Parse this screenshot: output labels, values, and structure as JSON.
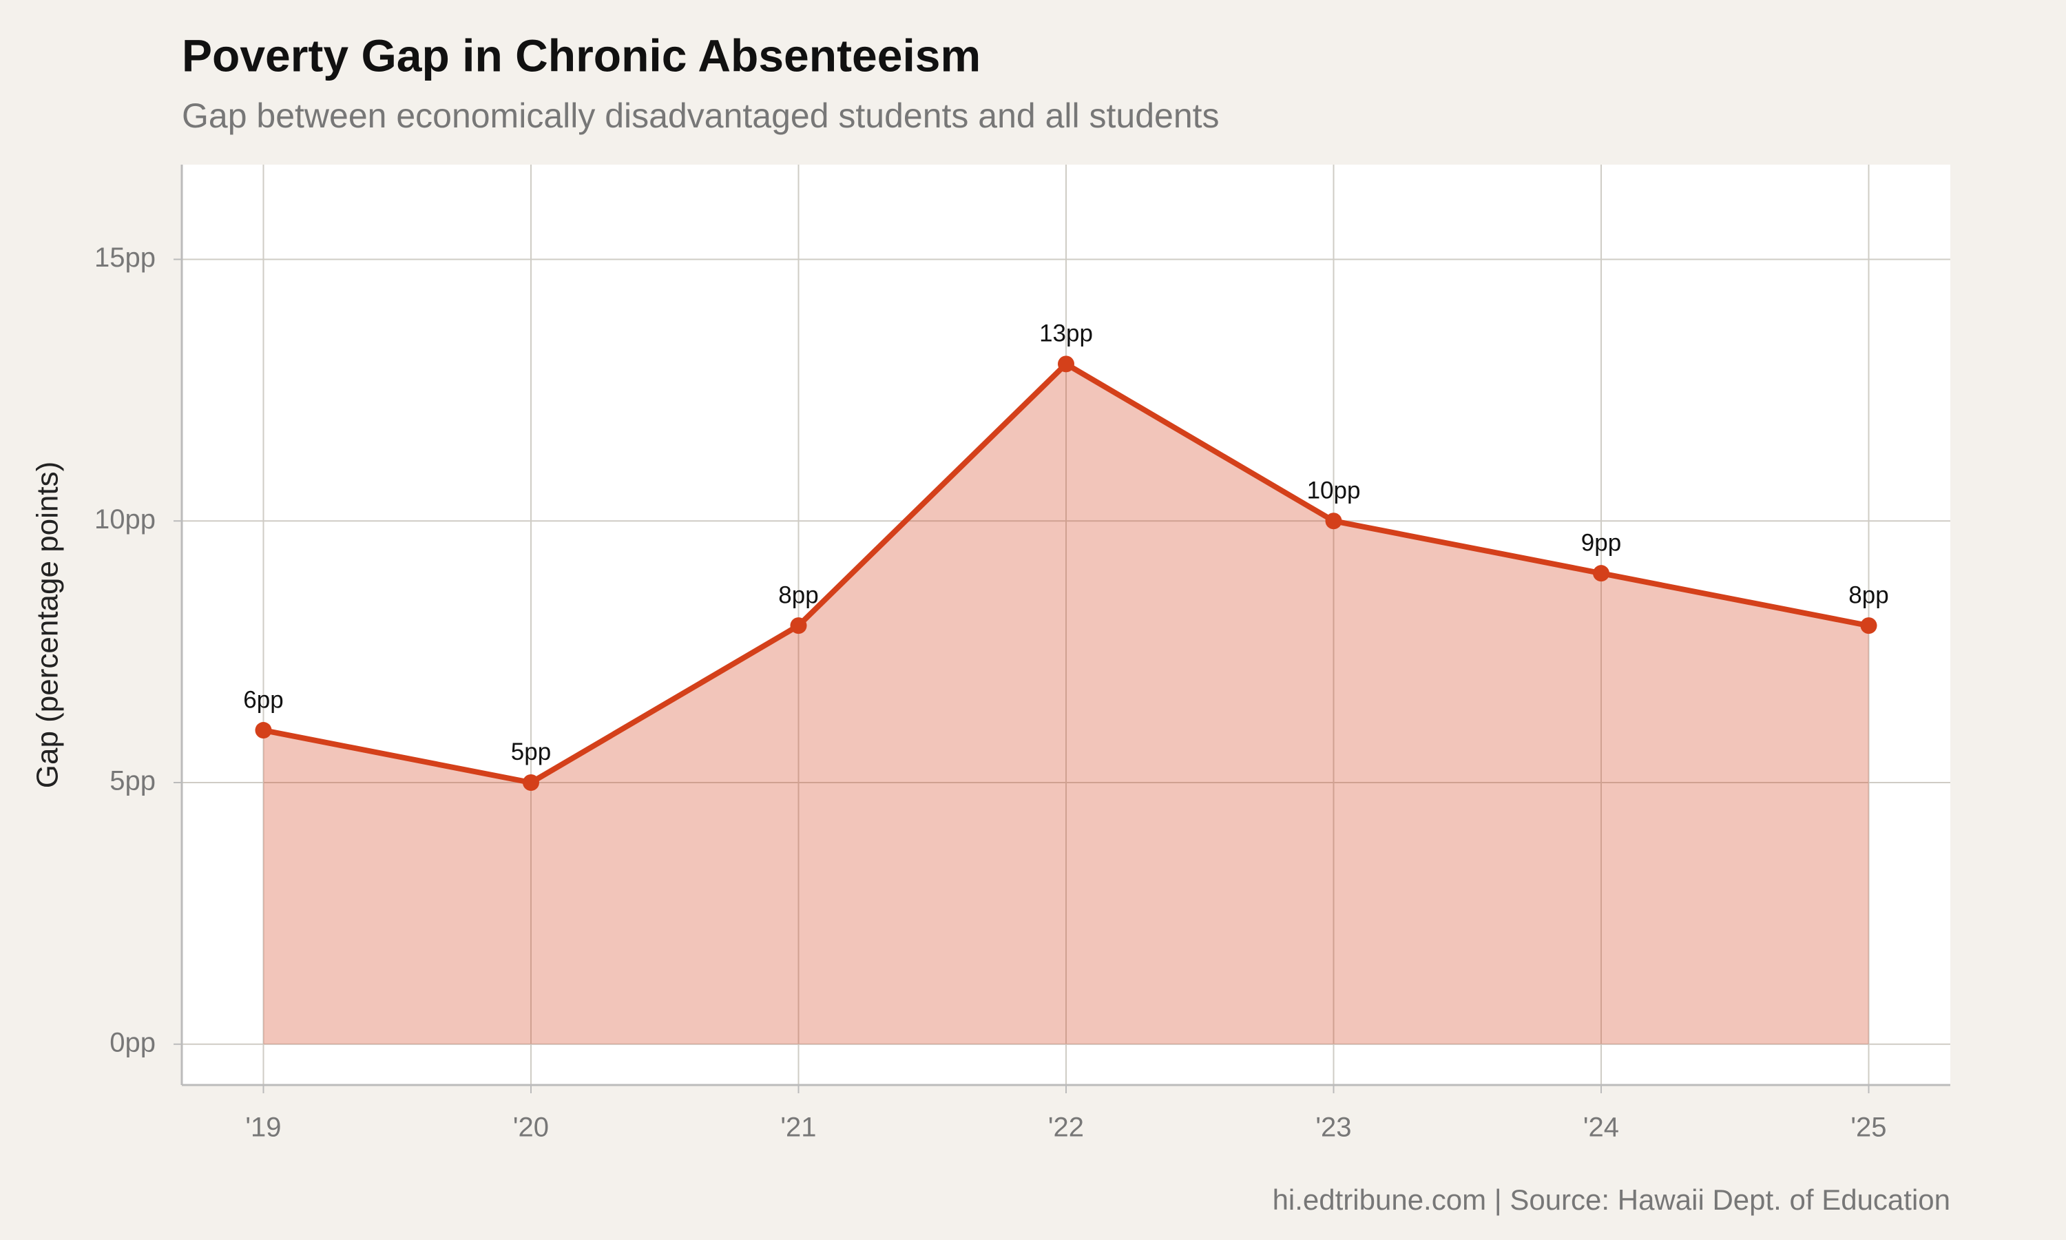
{
  "chart_data": {
    "type": "line",
    "title": "Poverty Gap in Chronic Absenteeism",
    "subtitle": "Gap between economically disadvantaged students and all students",
    "y_label": "Gap (percentage points)",
    "caption": "hi.edtribune.com | Source: Hawaii Dept. of Education",
    "categories": [
      "'19",
      "'20",
      "'21",
      "'22",
      "'23",
      "'24",
      "'25"
    ],
    "values": [
      6,
      5,
      8,
      13,
      10,
      9,
      8
    ],
    "value_labels": [
      "6pp",
      "5pp",
      "8pp",
      "13pp",
      "10pp",
      "9pp",
      "8pp"
    ],
    "color": "#d4401a",
    "area": true,
    "ylim": [
      -0.78,
      16.81
    ],
    "yticks": [
      {
        "value": 0,
        "label": "0pp"
      },
      {
        "value": 5,
        "label": "5pp"
      },
      {
        "value": 10,
        "label": "10pp"
      },
      {
        "value": 15,
        "label": "15pp"
      }
    ],
    "grid": true
  }
}
